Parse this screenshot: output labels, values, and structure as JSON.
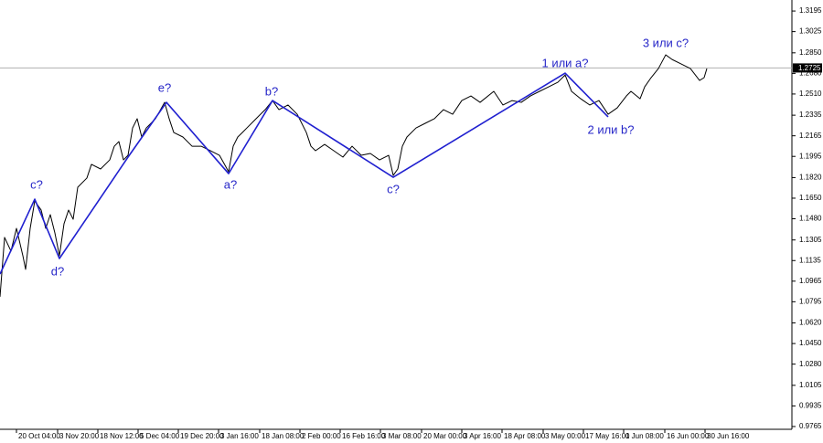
{
  "chart_data": {
    "type": "line",
    "xlim": [
      0,
      866
    ],
    "ylim": [
      0.9742,
      1.3286
    ],
    "yticks": [
      {
        "value": 1.3195,
        "label": "1.3195"
      },
      {
        "value": 1.3025,
        "label": "1.3025"
      },
      {
        "value": 1.285,
        "label": "1.2850"
      },
      {
        "value": 1.268,
        "label": "1.2680"
      },
      {
        "value": 1.251,
        "label": "1.2510"
      },
      {
        "value": 1.2335,
        "label": "1.2335"
      },
      {
        "value": 1.2165,
        "label": "1.2165"
      },
      {
        "value": 1.1995,
        "label": "1.1995"
      },
      {
        "value": 1.182,
        "label": "1.1820"
      },
      {
        "value": 1.165,
        "label": "1.1650"
      },
      {
        "value": 1.148,
        "label": "1.1480"
      },
      {
        "value": 1.1305,
        "label": "1.1305"
      },
      {
        "value": 1.1135,
        "label": "1.1135"
      },
      {
        "value": 1.0965,
        "label": "1.0965"
      },
      {
        "value": 1.0795,
        "label": "1.0795"
      },
      {
        "value": 1.062,
        "label": "1.0620"
      },
      {
        "value": 1.045,
        "label": "1.0450"
      },
      {
        "value": 1.028,
        "label": "1.0280"
      },
      {
        "value": 1.0105,
        "label": "1.0105"
      },
      {
        "value": 0.9935,
        "label": "0.9935"
      },
      {
        "value": 0.9765,
        "label": "0.9765"
      }
    ],
    "xticks": [
      {
        "value": 18,
        "label": "20 Oct 04:00"
      },
      {
        "value": 63,
        "label": "3 Nov 20:00"
      },
      {
        "value": 107,
        "label": "18 Nov 12:00"
      },
      {
        "value": 151,
        "label": "5 Dec 04:00"
      },
      {
        "value": 195,
        "label": "19 Dec 20:00"
      },
      {
        "value": 239,
        "label": "3 Jan 16:00"
      },
      {
        "value": 284,
        "label": "18 Jan 08:00"
      },
      {
        "value": 328,
        "label": "2 Feb 00:00"
      },
      {
        "value": 372,
        "label": "16 Feb 16:00"
      },
      {
        "value": 416,
        "label": "3 Mar 08:00"
      },
      {
        "value": 461,
        "label": "20 Mar 00:00"
      },
      {
        "value": 505,
        "label": "3 Apr 16:00"
      },
      {
        "value": 549,
        "label": "18 Apr 08:00"
      },
      {
        "value": 594,
        "label": "3 May 00:00"
      },
      {
        "value": 638,
        "label": "17 May 16:00"
      },
      {
        "value": 682,
        "label": "1 Jun 08:00"
      },
      {
        "value": 727,
        "label": "16 Jun 00:00"
      },
      {
        "value": 771,
        "label": "30 Jun 16:00"
      }
    ],
    "series": [
      {
        "color": "#000000",
        "x": [
          0,
          5,
          12,
          18,
          25,
          28,
          33,
          38,
          45,
          50,
          55,
          60,
          65,
          70,
          75,
          80,
          85,
          95,
          100,
          110,
          120,
          125,
          130,
          135,
          140,
          145,
          150,
          155,
          160,
          170,
          180,
          185,
          190,
          200,
          210,
          220,
          230,
          240,
          250,
          255,
          260,
          265,
          270,
          280,
          290,
          298,
          305,
          315,
          325,
          335,
          340,
          345,
          355,
          365,
          375,
          385,
          395,
          405,
          415,
          425,
          430,
          435,
          440,
          445,
          455,
          465,
          475,
          485,
          495,
          505,
          515,
          525,
          540,
          550,
          560,
          570,
          580,
          590,
          600,
          610,
          618,
          625,
          635,
          645,
          655,
          665,
          675,
          685,
          690,
          700,
          705,
          712,
          720,
          728,
          735,
          745,
          755,
          765,
          770,
          773
        ],
        "values": [
          1.0836,
          1.1326,
          1.1213,
          1.1401,
          1.1175,
          1.1062,
          1.1401,
          1.1627,
          1.1552,
          1.1401,
          1.1514,
          1.1363,
          1.1175,
          1.1439,
          1.1552,
          1.1476,
          1.174,
          1.1816,
          1.1929,
          1.1891,
          1.1966,
          1.2079,
          1.2117,
          1.1966,
          1.2004,
          1.223,
          1.2306,
          1.2155,
          1.223,
          1.2306,
          1.2441,
          1.2306,
          1.2192,
          1.2155,
          1.2079,
          1.2079,
          1.2042,
          1.2004,
          1.1868,
          1.2079,
          1.2155,
          1.2192,
          1.223,
          1.2306,
          1.2381,
          1.2456,
          1.2381,
          1.2419,
          1.2343,
          1.2192,
          1.2079,
          1.2042,
          1.2094,
          1.2042,
          1.1989,
          1.2079,
          1.2004,
          1.2019,
          1.1966,
          1.2004,
          1.1838,
          1.1891,
          1.2079,
          1.2155,
          1.223,
          1.2268,
          1.2306,
          1.2381,
          1.2343,
          1.2456,
          1.2494,
          1.2441,
          1.2532,
          1.2419,
          1.2456,
          1.2441,
          1.2494,
          1.2532,
          1.2569,
          1.2607,
          1.2667,
          1.2532,
          1.2471,
          1.2419,
          1.2456,
          1.2343,
          1.2396,
          1.2494,
          1.2532,
          1.2471,
          1.2569,
          1.2645,
          1.272,
          1.2833,
          1.2795,
          1.2758,
          1.272,
          1.2622,
          1.2645,
          1.272
        ]
      },
      {
        "color": "#2020d0",
        "x": [
          0,
          38,
          65,
          140,
          182,
          250,
          298,
          430,
          618,
          665
        ],
        "values": [
          1.1024,
          1.1642,
          1.1152,
          1.1989,
          1.2441,
          1.1853,
          1.2456,
          1.1823,
          1.2682,
          1.2321
        ]
      }
    ],
    "annotations": [
      {
        "text": "c?",
        "x": 40,
        "y": 1.1755
      },
      {
        "text": "d?",
        "x": 63,
        "y": 1.1039
      },
      {
        "text": "e?",
        "x": 180,
        "y": 1.2554
      },
      {
        "text": "a?",
        "x": 252,
        "y": 1.1755
      },
      {
        "text": "b?",
        "x": 297,
        "y": 1.2524
      },
      {
        "text": "c?",
        "x": 430,
        "y": 1.1718
      },
      {
        "text": "1 или a?",
        "x": 618,
        "y": 1.2758
      },
      {
        "text": "2 или b?",
        "x": 668,
        "y": 1.2208
      },
      {
        "text": "3 или c?",
        "x": 728,
        "y": 1.2924
      }
    ],
    "last_price": 1.2725
  }
}
